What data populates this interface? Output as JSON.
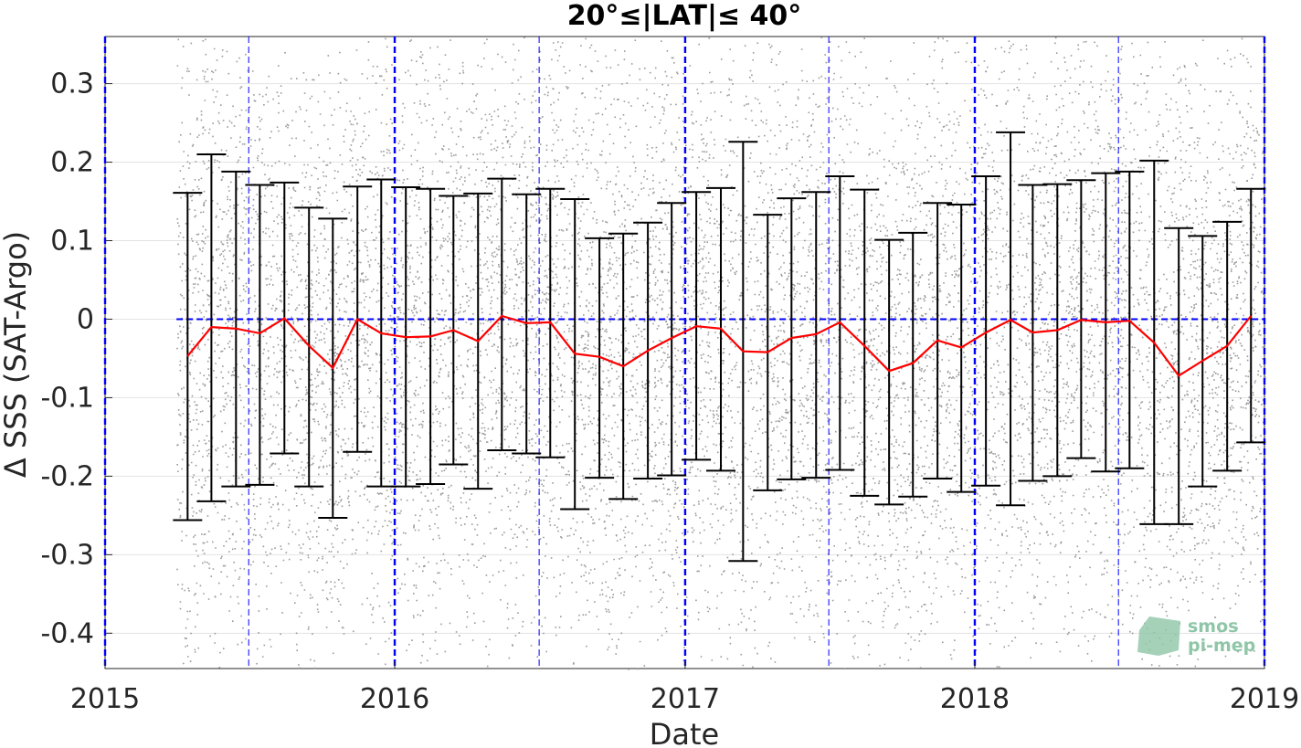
{
  "chart_data": {
    "type": "scatter",
    "title": "20°≤|LAT|≤ 40°",
    "xlabel": "Date",
    "ylabel": "Δ SSS (SAT-Argo)",
    "xlim": [
      "2015-01-01",
      "2019-01-01"
    ],
    "ylim": [
      -0.445,
      0.36
    ],
    "x_ticks": [
      "2015",
      "2016",
      "2017",
      "2018",
      "2019"
    ],
    "y_ticks": [
      -0.4,
      -0.3,
      -0.2,
      -0.1,
      0,
      0.1,
      0.2,
      0.3
    ],
    "y_tick_labels": [
      "-0.4",
      "-0.3",
      "-0.2",
      "-0.1",
      "0",
      "0.1",
      "0.2",
      "0.3"
    ],
    "grid": true,
    "scatter_color": "#8a8a8a",
    "mean_line_color": "#ff0000",
    "errorbar_color": "#000000",
    "reference_line_color": "#0000ff",
    "scatter_start": "2015-04-01",
    "scatter_end": "2019-01-01",
    "year_reference_lines": [
      "2015-01-01",
      "2016-01-01",
      "2017-01-01",
      "2018-01-01",
      "2019-01-01"
    ],
    "midyear_reference_lines": [
      "2015-07-01",
      "2016-07-01",
      "2017-07-01",
      "2018-07-01"
    ],
    "zero_reference_y": 0,
    "series": [
      {
        "x": [
          "2015-04-15",
          "2015-05-15",
          "2015-06-15",
          "2015-07-15",
          "2015-08-15",
          "2015-09-15",
          "2015-10-15",
          "2015-11-15",
          "2015-12-15",
          "2016-01-15",
          "2016-02-15",
          "2016-03-15",
          "2016-04-15",
          "2016-05-15",
          "2016-06-15",
          "2016-07-15",
          "2016-08-15",
          "2016-09-15",
          "2016-10-15",
          "2016-11-15",
          "2016-12-15",
          "2017-01-15",
          "2017-02-15",
          "2017-03-15",
          "2017-04-15",
          "2017-05-15",
          "2017-06-15",
          "2017-07-15",
          "2017-08-15",
          "2017-09-15",
          "2017-10-15",
          "2017-11-15",
          "2017-12-15",
          "2018-01-15",
          "2018-02-15",
          "2018-03-15",
          "2018-04-15",
          "2018-05-15",
          "2018-06-15",
          "2018-07-15",
          "2018-08-15",
          "2018-09-15",
          "2018-10-15",
          "2018-11-15",
          "2018-12-15"
        ],
        "mean": [
          -0.047,
          -0.01,
          -0.012,
          -0.018,
          0.001,
          -0.034,
          -0.062,
          0.0,
          -0.018,
          -0.023,
          -0.022,
          -0.014,
          -0.028,
          0.004,
          -0.005,
          -0.004,
          -0.044,
          -0.048,
          -0.06,
          -0.04,
          -0.024,
          -0.009,
          -0.012,
          -0.041,
          -0.042,
          -0.024,
          -0.019,
          -0.004,
          -0.034,
          -0.066,
          -0.056,
          -0.027,
          -0.036,
          -0.017,
          -0.001,
          -0.017,
          -0.014,
          -0.001,
          -0.004,
          -0.002,
          -0.03,
          -0.072,
          -0.053,
          -0.034,
          0.004
        ],
        "upper": [
          0.161,
          0.21,
          0.188,
          0.171,
          0.174,
          0.142,
          0.128,
          0.169,
          0.178,
          0.168,
          0.166,
          0.157,
          0.16,
          0.179,
          0.159,
          0.166,
          0.153,
          0.103,
          0.109,
          0.123,
          0.148,
          0.162,
          0.167,
          0.226,
          0.133,
          0.154,
          0.162,
          0.182,
          0.165,
          0.101,
          0.11,
          0.148,
          0.146,
          0.182,
          0.238,
          0.171,
          0.172,
          0.177,
          0.186,
          0.188,
          0.202,
          0.116,
          0.106,
          0.124,
          0.166
        ],
        "lower": [
          -0.256,
          -0.232,
          -0.213,
          -0.211,
          -0.171,
          -0.213,
          -0.253,
          -0.169,
          -0.213,
          -0.213,
          -0.21,
          -0.185,
          -0.216,
          -0.167,
          -0.171,
          -0.176,
          -0.242,
          -0.202,
          -0.229,
          -0.203,
          -0.199,
          -0.179,
          -0.193,
          -0.308,
          -0.218,
          -0.204,
          -0.202,
          -0.192,
          -0.225,
          -0.236,
          -0.226,
          -0.203,
          -0.22,
          -0.212,
          -0.237,
          -0.206,
          -0.2,
          -0.177,
          -0.194,
          -0.19,
          -0.261,
          -0.261,
          -0.213,
          -0.193,
          -0.157
        ]
      }
    ],
    "logo_text": [
      "smos",
      "pi-mep"
    ]
  }
}
